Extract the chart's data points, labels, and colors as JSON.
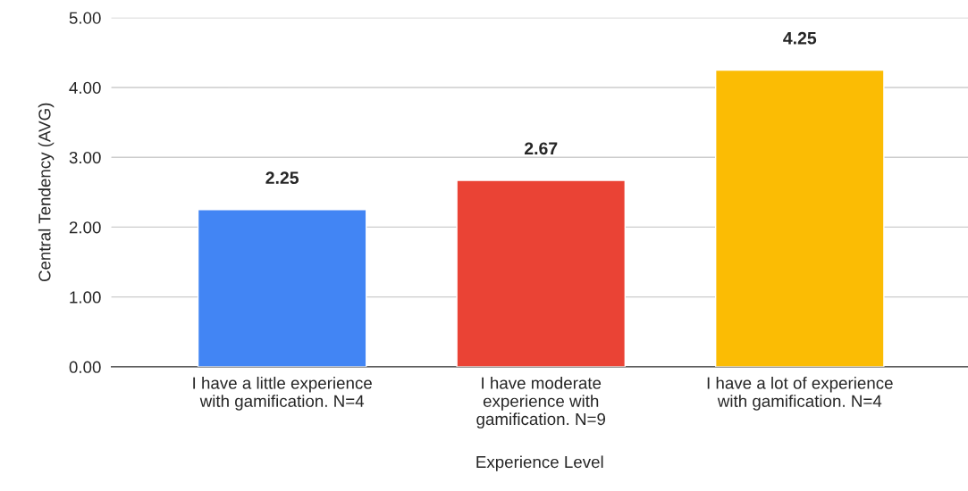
{
  "chart_data": {
    "type": "bar",
    "xlabel": "Experience Level",
    "ylabel": "Central Tendency (AVG)",
    "categories": [
      "I have a little experience\nwith gamification. N=4",
      "I have moderate\nexperience with\ngamification. N=9",
      "I have a lot of experience\nwith gamification. N=4"
    ],
    "values": [
      2.25,
      2.67,
      4.25
    ],
    "colors": [
      "#4285f4",
      "#ea4335",
      "#fbbc04"
    ],
    "ylim": [
      0,
      5
    ],
    "yticks": [
      {
        "value": 0,
        "label": "0.00"
      },
      {
        "value": 1,
        "label": "1.00"
      },
      {
        "value": 2,
        "label": "2.00"
      },
      {
        "value": 3,
        "label": "3.00"
      },
      {
        "value": 4,
        "label": "4.00"
      },
      {
        "value": 5,
        "label": "5.00"
      }
    ],
    "grid": "y",
    "data_labels": true,
    "legend": false
  }
}
